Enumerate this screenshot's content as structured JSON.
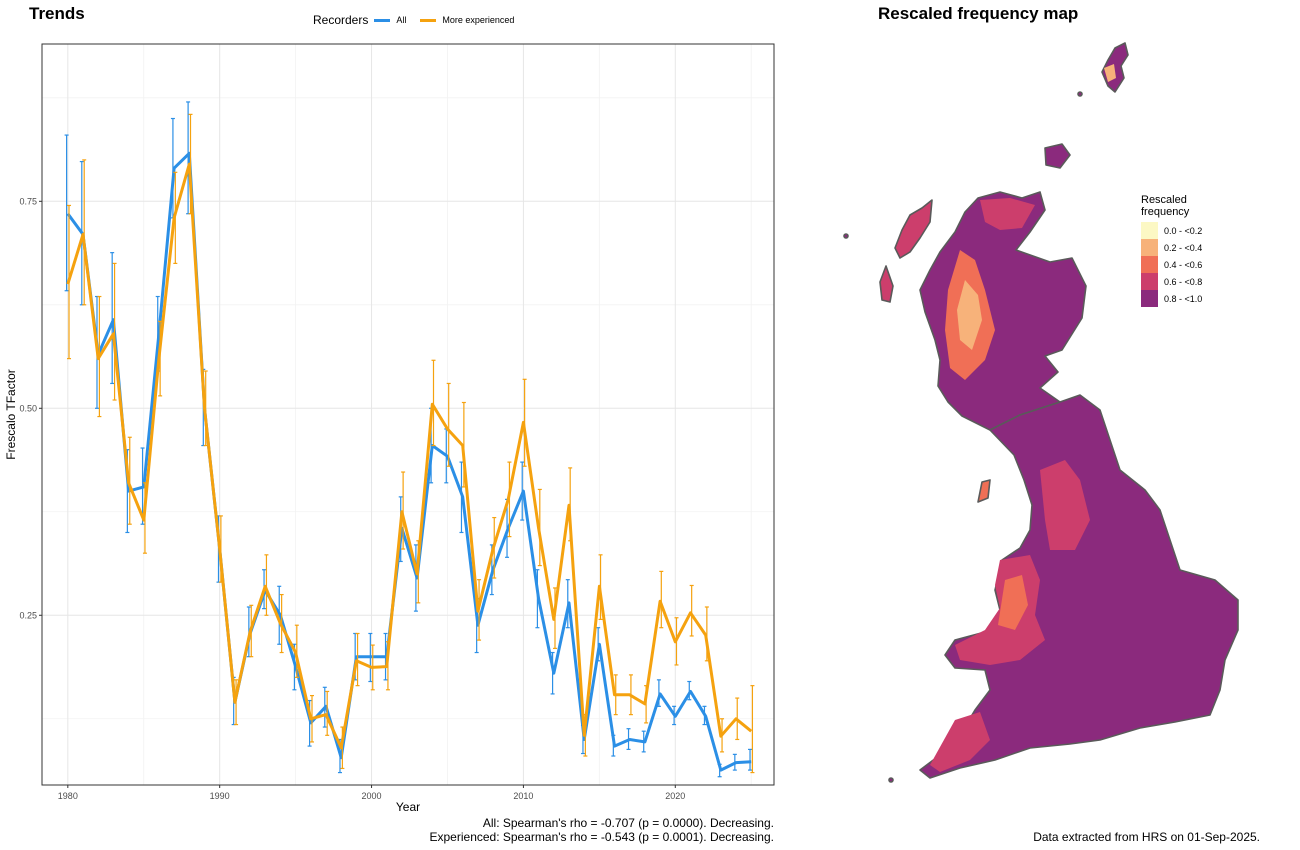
{
  "left_title": "Trends",
  "right_title": "Rescaled frequency map",
  "legend": {
    "title": "Recorders",
    "items": [
      {
        "label": "All",
        "color": "#2b8fe6"
      },
      {
        "label": "More experienced",
        "color": "#f5a20f"
      }
    ]
  },
  "stats": {
    "line1": "All: Spearman's rho = -0.707 (p = 0.0000). Decreasing.",
    "line2": "Experienced: Spearman's rho = -0.543 (p = 0.0001). Decreasing."
  },
  "footnote": "Data extracted from HRS on 01-Sep-2025.",
  "map_legend": {
    "title_line1": "Rescaled",
    "title_line2": "frequency",
    "items": [
      {
        "label": "0.0 - <0.2",
        "color": "#fcf8c4"
      },
      {
        "label": "0.2 - <0.4",
        "color": "#f7b27a"
      },
      {
        "label": "0.4 - <0.6",
        "color": "#f06f56"
      },
      {
        "label": "0.6 - <0.8",
        "color": "#cc3e6c"
      },
      {
        "label": "0.8 - <1.0",
        "color": "#8b2a7d"
      }
    ]
  },
  "chart_data": {
    "type": "line",
    "title": "",
    "xlabel": "Year",
    "ylabel": "Frescalo TFactor",
    "xlim": [
      1978.3,
      2026.5
    ],
    "ylim": [
      0.045,
      0.94
    ],
    "xticks": [
      1980,
      1990,
      2000,
      2010,
      2020
    ],
    "yticks": [
      0.25,
      0.5,
      0.75
    ],
    "ytick_labels": [
      "0.25",
      "0.50",
      "0.75"
    ],
    "grid": true,
    "legend_position": "top",
    "series": [
      {
        "name": "All",
        "color": "#2b8fe6",
        "x": [
          1980,
          1981,
          1982,
          1983,
          1984,
          1985,
          1986,
          1987,
          1988,
          1989,
          1990,
          1991,
          1992,
          1993,
          1994,
          1995,
          1996,
          1997,
          1998,
          1999,
          2000,
          2001,
          2002,
          2003,
          2004,
          2005,
          2006,
          2007,
          2008,
          2009,
          2010,
          2011,
          2012,
          2013,
          2014,
          2015,
          2016,
          2017,
          2018,
          2019,
          2020,
          2021,
          2022,
          2023,
          2024,
          2025
        ],
        "y": [
          0.735,
          0.71,
          0.565,
          0.607,
          0.4,
          0.405,
          0.59,
          0.79,
          0.808,
          0.5,
          0.33,
          0.145,
          0.228,
          0.28,
          0.25,
          0.188,
          0.12,
          0.14,
          0.078,
          0.2,
          0.2,
          0.2,
          0.355,
          0.295,
          0.455,
          0.442,
          0.393,
          0.238,
          0.305,
          0.355,
          0.4,
          0.27,
          0.18,
          0.265,
          0.1,
          0.215,
          0.092,
          0.1,
          0.097,
          0.155,
          0.128,
          0.158,
          0.128,
          0.063,
          0.072,
          0.073
        ],
        "lower": [
          0.642,
          0.625,
          0.5,
          0.53,
          0.35,
          0.36,
          0.545,
          0.73,
          0.735,
          0.455,
          0.29,
          0.118,
          0.2,
          0.258,
          0.215,
          0.16,
          0.092,
          0.115,
          0.06,
          0.172,
          0.17,
          0.172,
          0.315,
          0.255,
          0.41,
          0.41,
          0.35,
          0.205,
          0.275,
          0.32,
          0.365,
          0.235,
          0.155,
          0.235,
          0.083,
          0.195,
          0.08,
          0.088,
          0.085,
          0.14,
          0.118,
          0.148,
          0.118,
          0.055,
          0.063,
          0.063
        ],
        "upper": [
          0.83,
          0.798,
          0.635,
          0.688,
          0.45,
          0.452,
          0.635,
          0.85,
          0.87,
          0.547,
          0.37,
          0.175,
          0.26,
          0.305,
          0.285,
          0.215,
          0.147,
          0.163,
          0.1,
          0.228,
          0.228,
          0.228,
          0.393,
          0.335,
          0.5,
          0.475,
          0.435,
          0.27,
          0.335,
          0.39,
          0.435,
          0.305,
          0.205,
          0.293,
          0.117,
          0.235,
          0.105,
          0.113,
          0.11,
          0.172,
          0.14,
          0.17,
          0.14,
          0.07,
          0.082,
          0.088
        ]
      },
      {
        "name": "More experienced",
        "color": "#f5a20f",
        "x": [
          1980,
          1981,
          1982,
          1983,
          1984,
          1985,
          1986,
          1987,
          1988,
          1989,
          1990,
          1991,
          1992,
          1993,
          1994,
          1995,
          1996,
          1997,
          1998,
          1999,
          2000,
          2001,
          2002,
          2003,
          2004,
          2005,
          2006,
          2007,
          2008,
          2009,
          2010,
          2011,
          2012,
          2013,
          2014,
          2015,
          2016,
          2017,
          2018,
          2019,
          2020,
          2021,
          2022,
          2023,
          2024,
          2025
        ],
        "y": [
          0.65,
          0.71,
          0.56,
          0.59,
          0.41,
          0.365,
          0.56,
          0.73,
          0.795,
          0.5,
          0.33,
          0.145,
          0.23,
          0.285,
          0.24,
          0.205,
          0.125,
          0.13,
          0.09,
          0.195,
          0.187,
          0.188,
          0.375,
          0.3,
          0.505,
          0.475,
          0.455,
          0.255,
          0.33,
          0.39,
          0.483,
          0.355,
          0.245,
          0.383,
          0.105,
          0.285,
          0.154,
          0.154,
          0.143,
          0.267,
          0.218,
          0.253,
          0.226,
          0.104,
          0.125,
          0.11
        ],
        "lower": [
          0.56,
          0.625,
          0.49,
          0.51,
          0.36,
          0.325,
          0.515,
          0.675,
          0.735,
          0.455,
          0.29,
          0.118,
          0.2,
          0.25,
          0.205,
          0.175,
          0.097,
          0.105,
          0.065,
          0.165,
          0.16,
          0.16,
          0.33,
          0.265,
          0.455,
          0.43,
          0.405,
          0.22,
          0.295,
          0.345,
          0.43,
          0.31,
          0.21,
          0.34,
          0.08,
          0.245,
          0.13,
          0.13,
          0.12,
          0.235,
          0.19,
          0.225,
          0.195,
          0.085,
          0.1,
          0.06
        ],
        "upper": [
          0.745,
          0.8,
          0.635,
          0.675,
          0.465,
          0.41,
          0.605,
          0.785,
          0.855,
          0.545,
          0.37,
          0.172,
          0.262,
          0.323,
          0.275,
          0.238,
          0.153,
          0.158,
          0.115,
          0.228,
          0.214,
          0.218,
          0.423,
          0.34,
          0.558,
          0.53,
          0.507,
          0.293,
          0.368,
          0.435,
          0.535,
          0.402,
          0.283,
          0.428,
          0.13,
          0.323,
          0.178,
          0.178,
          0.165,
          0.303,
          0.247,
          0.286,
          0.26,
          0.125,
          0.15,
          0.165
        ]
      }
    ]
  }
}
